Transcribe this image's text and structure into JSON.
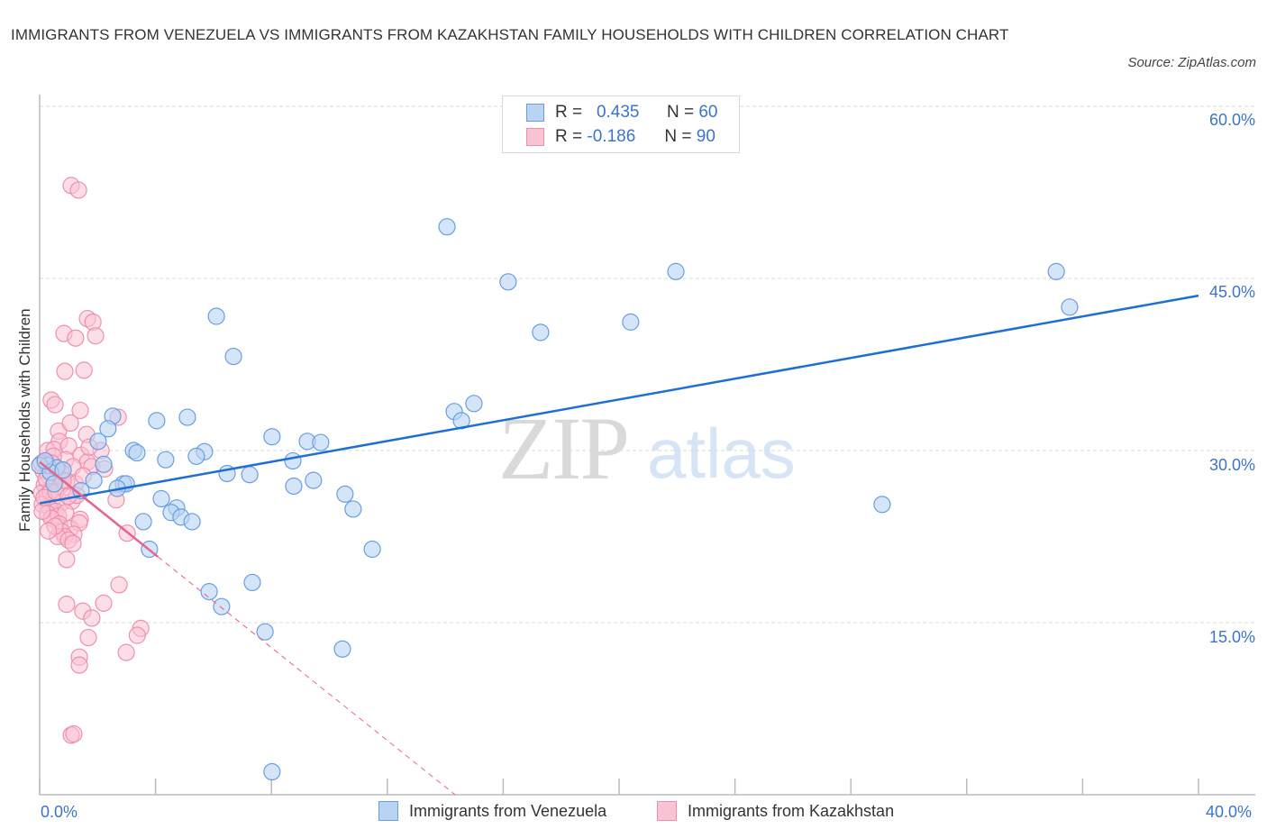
{
  "header": {
    "title": "IMMIGRANTS FROM VENEZUELA VS IMMIGRANTS FROM KAZAKHSTAN FAMILY HOUSEHOLDS WITH CHILDREN CORRELATION CHART",
    "source": "Source: ZipAtlas.com"
  },
  "watermark": {
    "zip": "ZIP",
    "atlas": "atlas"
  },
  "legend_top": {
    "rows": [
      {
        "r_label": "R =",
        "r_value": "0.435",
        "n_label": "N =",
        "n_value": "60"
      },
      {
        "r_label": "R =",
        "r_value": "-0.186",
        "n_label": "N =",
        "n_value": "90"
      }
    ]
  },
  "legend_bottom": {
    "items": [
      {
        "label": "Immigrants from Venezuela"
      },
      {
        "label": "Immigrants from Kazakhstan"
      }
    ]
  },
  "colors": {
    "venezuela_fill": "#b9d3f3",
    "venezuela_stroke": "#6a9de0",
    "venezuela_line": "#1f6fd1",
    "kazakhstan_fill": "#f9c3d4",
    "kazakhstan_stroke": "#ee8fac",
    "kazakhstan_line": "#e5638f",
    "tick_label": "#3b74c9",
    "grid": "#d9d9d9"
  },
  "chart_data": {
    "type": "scatter",
    "title": "IMMIGRANTS FROM VENEZUELA VS IMMIGRANTS FROM KAZAKHSTAN FAMILY HOUSEHOLDS WITH CHILDREN CORRELATION CHART",
    "xlabel": "",
    "ylabel": "Family Households with Children",
    "xlim": [
      0,
      40
    ],
    "ylim": [
      0,
      60
    ],
    "x_tick_labels": [
      "0.0%",
      "40.0%"
    ],
    "y_tick_labels": [
      "15.0%",
      "30.0%",
      "45.0%",
      "60.0%"
    ],
    "y_ticks": [
      15,
      30,
      45,
      60
    ],
    "grid": true,
    "legend_position": "bottom",
    "series": [
      {
        "name": "Immigrants from Venezuela",
        "R": 0.435,
        "N": 60,
        "trend": {
          "x0": 0,
          "y0": 25.4,
          "x1": 40,
          "y1": 43.5
        },
        "points": [
          [
            14.06,
            49.5
          ],
          [
            16.17,
            44.7
          ],
          [
            21.96,
            45.6
          ],
          [
            35.09,
            45.6
          ],
          [
            35.55,
            42.5
          ],
          [
            17.29,
            40.3
          ],
          [
            20.4,
            41.2
          ],
          [
            6.1,
            41.7
          ],
          [
            6.69,
            38.2
          ],
          [
            2.52,
            33.0
          ],
          [
            5.1,
            32.9
          ],
          [
            4.04,
            32.6
          ],
          [
            2.36,
            31.9
          ],
          [
            2.02,
            30.8
          ],
          [
            8.02,
            31.2
          ],
          [
            9.24,
            30.8
          ],
          [
            9.7,
            30.7
          ],
          [
            3.24,
            30.0
          ],
          [
            3.36,
            29.8
          ],
          [
            5.69,
            29.9
          ],
          [
            5.41,
            29.5
          ],
          [
            4.35,
            29.2
          ],
          [
            2.21,
            28.8
          ],
          [
            0.28,
            28.7
          ],
          [
            0.59,
            28.5
          ],
          [
            6.47,
            28.0
          ],
          [
            7.25,
            27.9
          ],
          [
            8.77,
            26.9
          ],
          [
            9.45,
            27.4
          ],
          [
            1.87,
            27.4
          ],
          [
            2.89,
            27.1
          ],
          [
            2.99,
            27.1
          ],
          [
            14.31,
            33.4
          ],
          [
            14.56,
            32.6
          ],
          [
            14.99,
            34.1
          ],
          [
            8.74,
            29.1
          ],
          [
            4.2,
            25.8
          ],
          [
            4.73,
            25.0
          ],
          [
            4.54,
            24.6
          ],
          [
            4.88,
            24.2
          ],
          [
            5.26,
            23.8
          ],
          [
            3.58,
            23.8
          ],
          [
            10.54,
            26.2
          ],
          [
            10.82,
            24.9
          ],
          [
            29.08,
            25.3
          ],
          [
            11.48,
            21.4
          ],
          [
            3.79,
            21.4
          ],
          [
            5.85,
            17.7
          ],
          [
            6.28,
            16.4
          ],
          [
            7.34,
            18.5
          ],
          [
            7.78,
            14.2
          ],
          [
            10.45,
            12.7
          ],
          [
            8.02,
            2.0
          ],
          [
            0.0,
            28.7
          ],
          [
            0.37,
            28.1
          ],
          [
            0.5,
            27.1
          ],
          [
            0.19,
            29.1
          ],
          [
            0.81,
            28.3
          ],
          [
            1.43,
            26.5
          ],
          [
            2.68,
            26.7
          ]
        ]
      },
      {
        "name": "Immigrants from Kazakhstan",
        "R": -0.186,
        "N": 90,
        "trend": {
          "x0": 0,
          "y0": 29.0,
          "x1": 14.34,
          "y1": 0,
          "solid_until_x": 4.08
        },
        "points": [
          [
            1.09,
            53.1
          ],
          [
            1.34,
            52.7
          ],
          [
            1.65,
            41.5
          ],
          [
            1.84,
            41.2
          ],
          [
            0.84,
            40.2
          ],
          [
            1.24,
            39.8
          ],
          [
            1.93,
            40.0
          ],
          [
            0.87,
            36.9
          ],
          [
            1.53,
            37.0
          ],
          [
            0.4,
            34.4
          ],
          [
            0.53,
            34.0
          ],
          [
            1.4,
            33.5
          ],
          [
            2.71,
            32.9
          ],
          [
            0.65,
            31.7
          ],
          [
            1.06,
            32.4
          ],
          [
            1.62,
            31.4
          ],
          [
            0.68,
            30.8
          ],
          [
            0.28,
            30.0
          ],
          [
            0.5,
            30.1
          ],
          [
            1.0,
            30.4
          ],
          [
            0.19,
            29.1
          ],
          [
            1.43,
            29.6
          ],
          [
            1.65,
            29.0
          ],
          [
            0.9,
            29.2
          ],
          [
            1.15,
            28.6
          ],
          [
            1.8,
            28.6
          ],
          [
            2.24,
            28.4
          ],
          [
            0.12,
            28.2
          ],
          [
            0.31,
            27.8
          ],
          [
            0.62,
            27.7
          ],
          [
            0.93,
            27.3
          ],
          [
            1.24,
            27.1
          ],
          [
            0.16,
            27.0
          ],
          [
            0.4,
            26.7
          ],
          [
            0.7,
            26.9
          ],
          [
            0.06,
            26.3
          ],
          [
            0.25,
            26.1
          ],
          [
            0.44,
            25.7
          ],
          [
            0.78,
            25.5
          ],
          [
            1.12,
            25.6
          ],
          [
            2.64,
            25.7
          ],
          [
            0.09,
            25.3
          ],
          [
            0.34,
            25.0
          ],
          [
            0.55,
            24.7
          ],
          [
            0.28,
            24.5
          ],
          [
            0.65,
            24.3
          ],
          [
            0.9,
            24.6
          ],
          [
            1.4,
            24.0
          ],
          [
            0.4,
            24.1
          ],
          [
            0.68,
            23.6
          ],
          [
            1.06,
            23.2
          ],
          [
            1.37,
            23.7
          ],
          [
            0.78,
            22.9
          ],
          [
            1.18,
            22.7
          ],
          [
            0.87,
            22.5
          ],
          [
            3.02,
            22.8
          ],
          [
            0.62,
            22.5
          ],
          [
            1.0,
            22.2
          ],
          [
            1.15,
            21.9
          ],
          [
            0.93,
            20.5
          ],
          [
            2.74,
            18.3
          ],
          [
            0.93,
            16.6
          ],
          [
            1.49,
            16.0
          ],
          [
            2.21,
            16.7
          ],
          [
            1.8,
            15.4
          ],
          [
            3.49,
            14.5
          ],
          [
            3.37,
            13.9
          ],
          [
            1.68,
            13.7
          ],
          [
            1.37,
            12.0
          ],
          [
            1.37,
            11.3
          ],
          [
            2.99,
            12.4
          ],
          [
            1.09,
            5.2
          ],
          [
            1.18,
            5.3
          ],
          [
            0.06,
            28.9
          ],
          [
            0.47,
            29.5
          ],
          [
            0.22,
            27.5
          ],
          [
            0.75,
            28.1
          ],
          [
            0.37,
            26.4
          ],
          [
            0.09,
            24.7
          ],
          [
            0.53,
            23.4
          ],
          [
            1.28,
            26.1
          ],
          [
            0.15,
            25.9
          ],
          [
            0.56,
            26.4
          ],
          [
            0.81,
            27.4
          ],
          [
            1.5,
            27.8
          ],
          [
            2.12,
            30.0
          ],
          [
            0.3,
            23.0
          ],
          [
            1.71,
            30.3
          ],
          [
            0.42,
            28.9
          ],
          [
            0.99,
            26.0
          ]
        ]
      }
    ]
  }
}
